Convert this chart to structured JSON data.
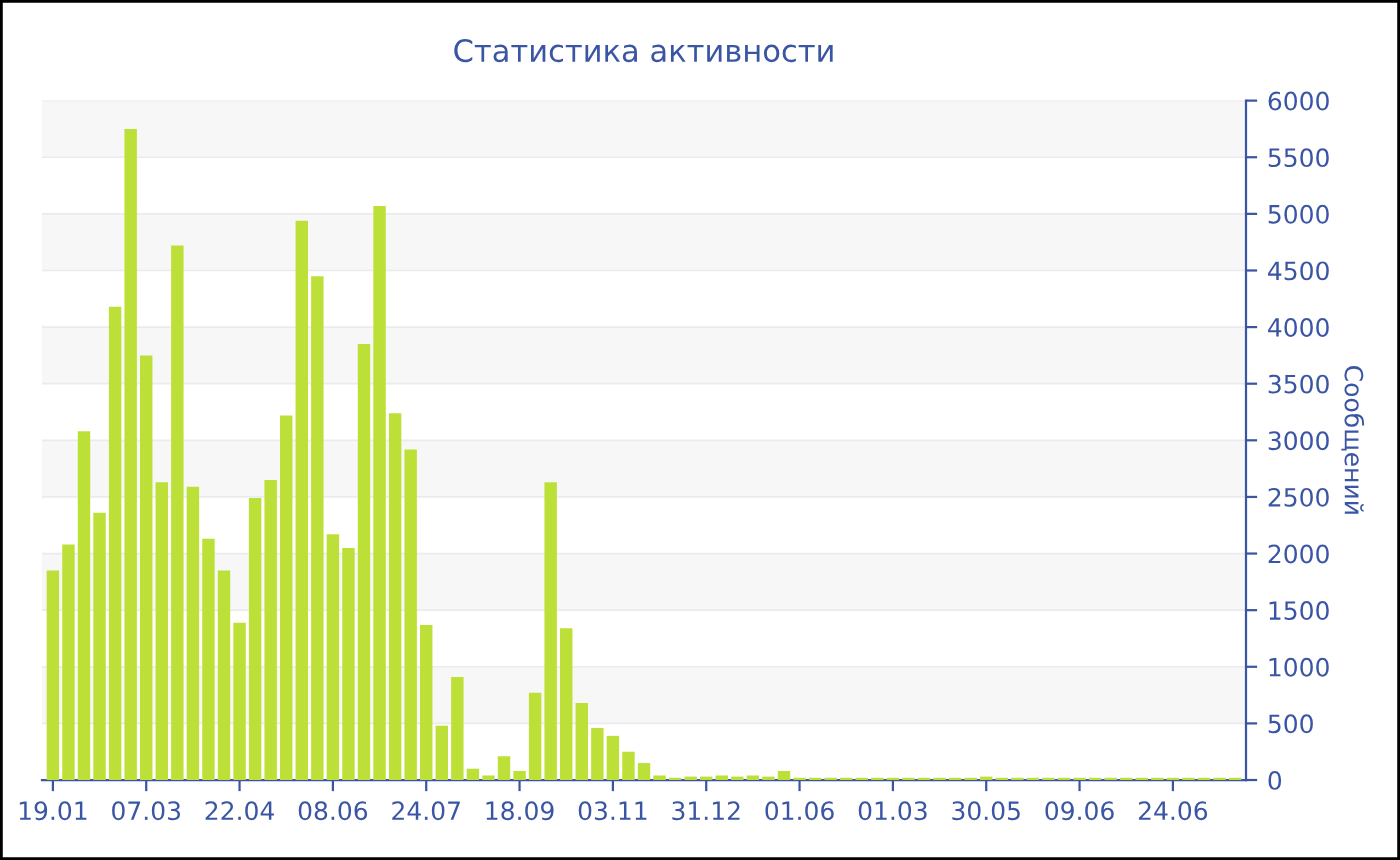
{
  "chart_data": {
    "type": "bar",
    "title": "Статистика активности",
    "ylabel": "Сообщений",
    "categories": [
      "19.01",
      null,
      null,
      null,
      null,
      null,
      "07.03",
      null,
      null,
      null,
      null,
      null,
      "22.04",
      null,
      null,
      null,
      null,
      null,
      "08.06",
      null,
      null,
      null,
      null,
      null,
      "24.07",
      null,
      null,
      null,
      null,
      null,
      "18.09",
      null,
      null,
      null,
      null,
      null,
      "03.11",
      null,
      null,
      null,
      null,
      null,
      "31.12",
      null,
      null,
      null,
      null,
      null,
      "01.06",
      null,
      null,
      null,
      null,
      null,
      "01.03",
      null,
      null,
      null,
      null,
      null,
      "30.05",
      null,
      null,
      null,
      null,
      null,
      "09.06",
      null,
      null,
      null,
      null,
      null,
      "24.06",
      null,
      null,
      null,
      null
    ],
    "values": [
      1850,
      2080,
      3080,
      2360,
      4180,
      5750,
      3750,
      2630,
      4720,
      2590,
      2130,
      1850,
      1390,
      2490,
      2650,
      3220,
      4940,
      4450,
      2170,
      2050,
      3850,
      5070,
      3240,
      2920,
      1370,
      480,
      910,
      100,
      40,
      210,
      80,
      770,
      2630,
      1340,
      680,
      460,
      390,
      250,
      150,
      40,
      20,
      30,
      30,
      40,
      30,
      40,
      30,
      80,
      20,
      20,
      20,
      20,
      20,
      20,
      20,
      20,
      20,
      20,
      20,
      20,
      30,
      20,
      20,
      20,
      20,
      20,
      20,
      20,
      20,
      20,
      20,
      20,
      20,
      20,
      20,
      20,
      20
    ],
    "color": "#bde038",
    "ylim": [
      0,
      6000
    ],
    "yticks": [
      0,
      500,
      1000,
      1500,
      2000,
      2500,
      3000,
      3500,
      4000,
      4500,
      5000,
      5500,
      6000
    ],
    "grid": "y"
  }
}
